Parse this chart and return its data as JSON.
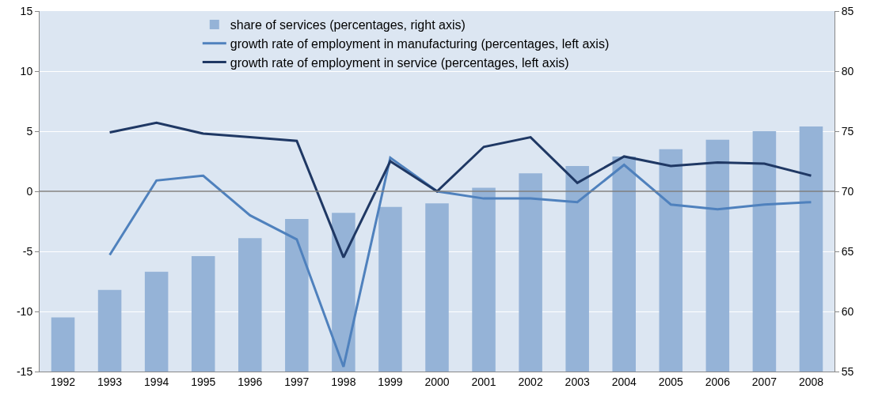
{
  "chart_data": {
    "type": "line",
    "categories": [
      "1992",
      "1993",
      "1994",
      "1995",
      "1996",
      "1997",
      "1998",
      "1999",
      "2000",
      "2001",
      "2002",
      "2003",
      "2004",
      "2005",
      "2006",
      "2007",
      "2008"
    ],
    "series": [
      {
        "name": "share of services (percentages, right axis)",
        "type": "bar",
        "axis": "y2",
        "color": "#95b3d7",
        "values": [
          59.5,
          61.8,
          63.3,
          64.6,
          66.1,
          67.7,
          68.2,
          68.7,
          69.0,
          70.3,
          71.5,
          72.1,
          72.9,
          73.5,
          74.3,
          75.0,
          75.4
        ]
      },
      {
        "name": "growth rate of employment in manufacturing (percentages, left axis)",
        "color": "#4f81bd",
        "values": [
          null,
          -5.3,
          0.9,
          1.3,
          -2.0,
          -4.0,
          -14.6,
          2.8,
          0.0,
          -0.6,
          -0.6,
          -0.9,
          2.2,
          -1.1,
          -1.5,
          -1.1,
          -0.9
        ]
      },
      {
        "name": "growth rate of employment in service (percentages, left axis)",
        "color": "#1f3864",
        "values": [
          null,
          4.9,
          5.7,
          4.8,
          4.5,
          4.2,
          -5.5,
          2.5,
          0.0,
          3.7,
          4.5,
          0.7,
          2.9,
          2.1,
          2.4,
          2.3,
          1.3
        ]
      }
    ],
    "ylim": [
      -15,
      15
    ],
    "yticks": [
      -15,
      -10,
      -5,
      0,
      5,
      10,
      15
    ],
    "y2lim": [
      55,
      85
    ],
    "y2ticks": [
      55,
      60,
      65,
      70,
      75,
      80,
      85
    ],
    "ref_lines": [
      {
        "axis": "y",
        "value": 0,
        "color": "#7f7f7f"
      }
    ],
    "grid": "y",
    "legend": "top left",
    "marker": "none",
    "line_style": "solid"
  }
}
